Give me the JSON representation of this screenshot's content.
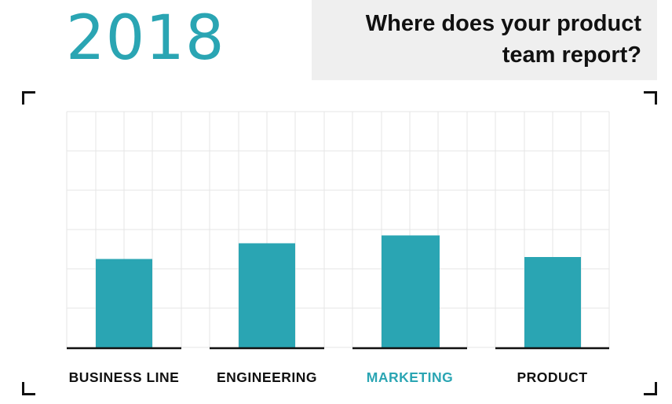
{
  "header": {
    "year": "2018",
    "question": "Where does your product team report?"
  },
  "colors": {
    "accent": "#2aa5b3",
    "label": "#111111",
    "grid": "#e6e6e6",
    "baseline": "#111111"
  },
  "chart_data": {
    "type": "bar",
    "categories": [
      "BUSINESS LINE",
      "ENGINEERING",
      "MARKETING",
      "PRODUCT"
    ],
    "values": [
      2.25,
      2.65,
      2.85,
      2.3
    ],
    "highlighted_category": "MARKETING",
    "ylim": [
      0,
      6
    ],
    "grid": true,
    "legend": "none",
    "title": "",
    "xlabel": "",
    "ylabel": ""
  }
}
